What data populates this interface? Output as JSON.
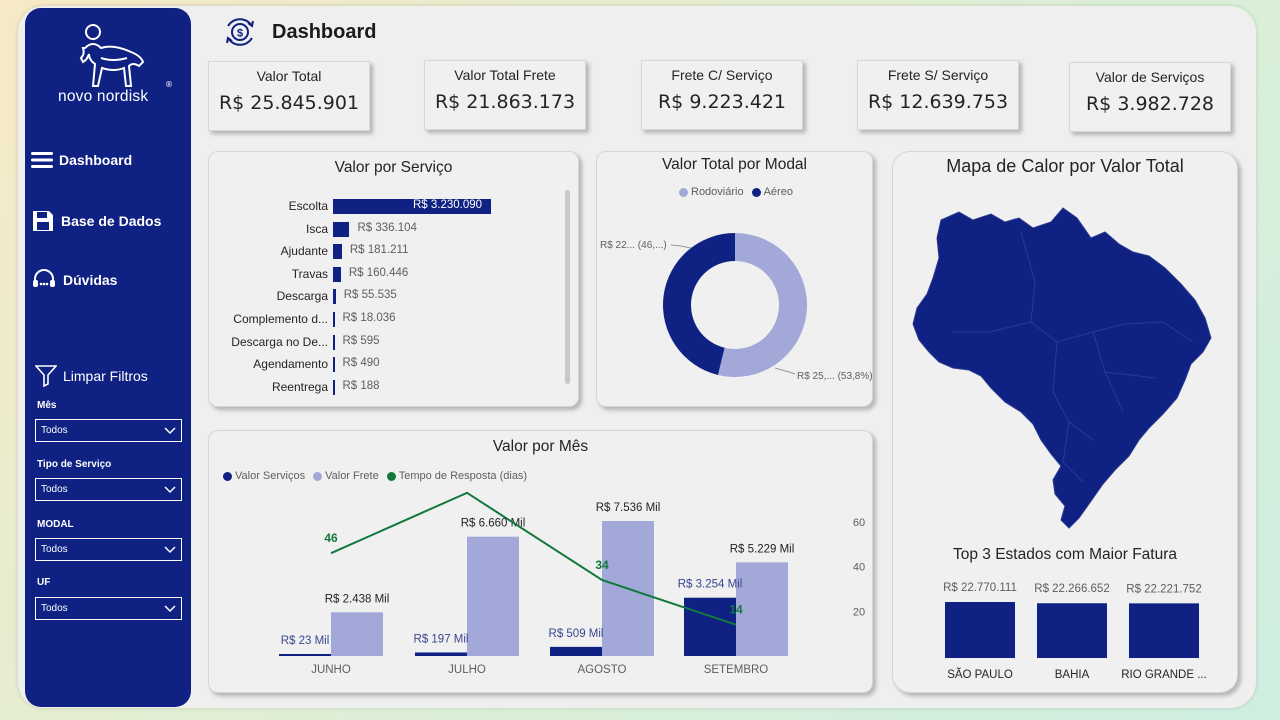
{
  "brand": {
    "name": "novo nordisk",
    "reg": "®",
    "sidebar_color": "#0f2182",
    "accent": "#0f2182",
    "light": "#a2a9d9",
    "green": "#12783d"
  },
  "header": {
    "title": "Dashboard",
    "icon": "dollar-cycle-icon"
  },
  "nav": [
    {
      "label": "Dashboard",
      "icon": "hamburger-icon"
    },
    {
      "label": "Base de Dados",
      "icon": "save-disk-icon"
    },
    {
      "label": "Dúvidas",
      "icon": "headset-icon"
    }
  ],
  "filters": {
    "clear_label": "Limpar Filtros",
    "items": [
      {
        "label": "Mês",
        "value": "Todos"
      },
      {
        "label": "Tipo de Serviço",
        "value": "Todos"
      },
      {
        "label": "MODAL",
        "value": "Todos"
      },
      {
        "label": "UF",
        "value": "Todos"
      }
    ]
  },
  "kpis": [
    {
      "label": "Valor Total",
      "value": "R$ 25.845.901"
    },
    {
      "label": "Valor Total Frete",
      "value": "R$ 21.863.173"
    },
    {
      "label": "Frete C/ Serviço",
      "value": "R$ 9.223.421"
    },
    {
      "label": "Frete S/ Serviço",
      "value": "R$ 12.639.753"
    },
    {
      "label": "Valor de Serviços",
      "value": "R$ 3.982.728"
    }
  ],
  "panels": {
    "servico_title": "Valor por Serviço",
    "modal_title": "Valor Total por Modal",
    "mapa_title": "Mapa de Calor por Valor Total",
    "mes_title": "Valor por Mês",
    "top3_title": "Top 3 Estados com Maior Fatura"
  },
  "chart_data": [
    {
      "type": "bar",
      "orientation": "horizontal",
      "title": "Valor por Serviço",
      "categories": [
        "Escolta",
        "Isca",
        "Ajudante",
        "Travas",
        "Descarga",
        "Complemento d...",
        "Descarga no De...",
        "Agendamento",
        "Reentrega"
      ],
      "values": [
        3230090,
        336104,
        181211,
        160446,
        55535,
        18036,
        595,
        490,
        188
      ],
      "labels": [
        "R$ 3.230.090",
        "R$ 336.104",
        "R$ 181.211",
        "R$ 160.446",
        "R$ 55.535",
        "R$ 18.036",
        "R$ 595",
        "R$ 490",
        "R$ 188"
      ]
    },
    {
      "type": "pie",
      "title": "Valor Total por Modal",
      "series": [
        {
          "name": "Rodoviário",
          "value_pct": 53.8,
          "label": "R$ 25,... (53,8%)",
          "color": "#a2a9d9"
        },
        {
          "name": "Aéreo",
          "value_pct": 46.2,
          "label": "R$ 22... (46,...)",
          "color": "#0f2182"
        }
      ],
      "legend": "top-center"
    },
    {
      "type": "bar",
      "title": "Valor por Mês",
      "categories": [
        "JUNHO",
        "JULHO",
        "AGOSTO",
        "SETEMBRO"
      ],
      "series": [
        {
          "name": "Valor Serviços",
          "values": [
            23,
            197,
            509,
            3254
          ],
          "labels": [
            "R$ 23 Mil",
            "R$ 197 Mil",
            "R$ 509 Mil",
            "R$ 3.254 Mil"
          ],
          "color": "#0f2182"
        },
        {
          "name": "Valor Frete",
          "values": [
            2438,
            6660,
            7536,
            5229
          ],
          "labels": [
            "R$ 2.438 Mil",
            "R$ 6.660 Mil",
            "R$ 7.536 Mil",
            "R$ 5.229 Mil"
          ],
          "color": "#a2a9d9"
        },
        {
          "name": "Tempo de Resposta (dias)",
          "type": "line",
          "values": [
            46,
            73,
            34,
            14
          ],
          "labels": [
            "46",
            "73",
            "34",
            "14"
          ],
          "color": "#12783d"
        }
      ],
      "y2_ticks": [
        "20",
        "40",
        "60",
        "80"
      ],
      "y2lim": [
        0,
        85
      ],
      "legend": "top-left"
    },
    {
      "type": "bar",
      "title": "Top 3 Estados com Maior Fatura",
      "categories": [
        "SÃO PAULO",
        "BAHIA",
        "RIO GRANDE ..."
      ],
      "values": [
        22770111,
        22266652,
        22221752
      ],
      "labels": [
        "R$ 22.770.111",
        "R$ 22.266.652",
        "R$ 22.221.752"
      ]
    }
  ]
}
